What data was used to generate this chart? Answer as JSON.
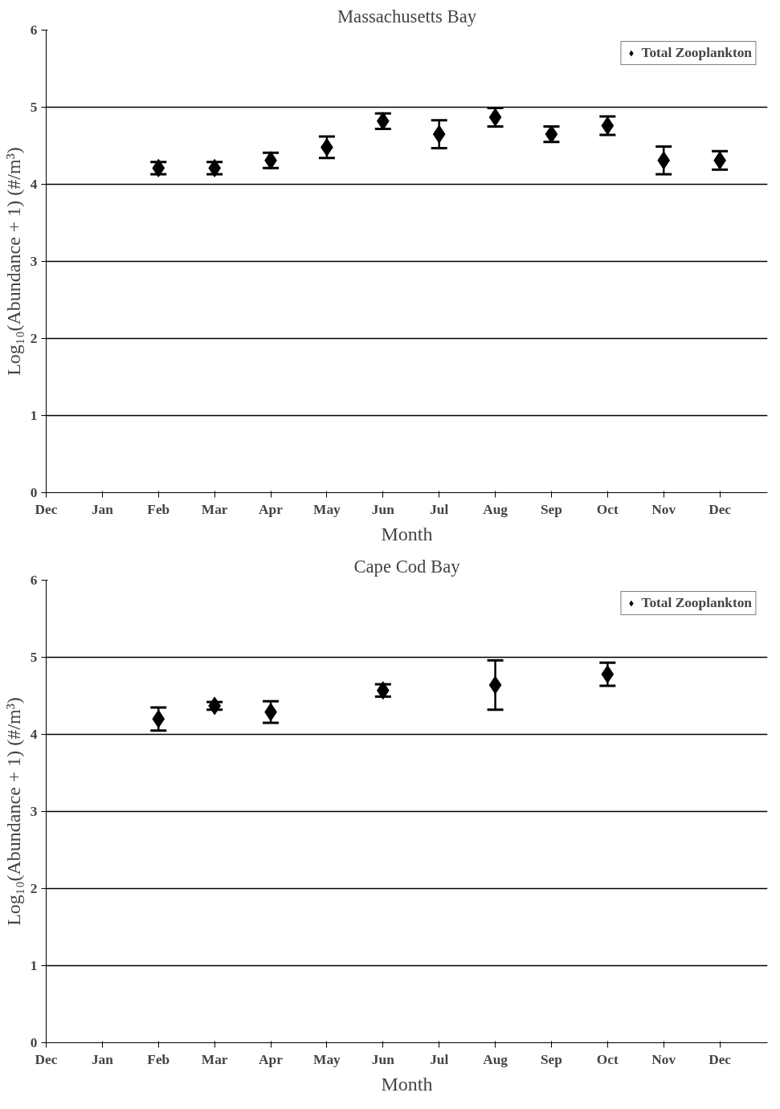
{
  "chart_data": [
    {
      "type": "scatter",
      "title": "Massachusetts Bay",
      "xlabel": "Month",
      "ylabel": "Log₁₀(Abundance + 1) (#/m³)",
      "categories": [
        "Dec",
        "Jan",
        "Feb",
        "Mar",
        "Apr",
        "May",
        "Jun",
        "Jul",
        "Aug",
        "Sep",
        "Oct",
        "Nov",
        "Dec"
      ],
      "series": [
        {
          "name": "Total Zooplankton",
          "color": "#000000",
          "values": [
            null,
            null,
            4.21,
            4.21,
            4.31,
            4.48,
            4.82,
            4.65,
            4.87,
            4.65,
            4.76,
            4.31,
            4.31
          ],
          "errors": [
            null,
            null,
            0.08,
            0.08,
            0.1,
            0.14,
            0.1,
            0.18,
            0.12,
            0.1,
            0.12,
            0.18,
            0.12
          ]
        }
      ],
      "ylim": [
        0,
        6
      ],
      "yticks": [
        0,
        1,
        2,
        3,
        4,
        5,
        6
      ],
      "grid": "y",
      "legend": "top right",
      "marker": "diamond"
    },
    {
      "type": "scatter",
      "title": "Cape Cod Bay",
      "xlabel": "Month",
      "ylabel": "Log₁₀(Abundance + 1) (#/m³)",
      "categories": [
        "Dec",
        "Jan",
        "Feb",
        "Mar",
        "Apr",
        "May",
        "Jun",
        "Jul",
        "Aug",
        "Sep",
        "Oct",
        "Nov",
        "Dec"
      ],
      "series": [
        {
          "name": "Total Zooplankton",
          "color": "#000000",
          "values": [
            null,
            null,
            4.2,
            4.37,
            4.29,
            null,
            4.57,
            null,
            4.64,
            null,
            4.78,
            null,
            null
          ],
          "errors": [
            null,
            null,
            0.15,
            0.05,
            0.14,
            null,
            0.08,
            null,
            0.32,
            null,
            0.15,
            null,
            null
          ]
        }
      ],
      "ylim": [
        0,
        6
      ],
      "yticks": [
        0,
        1,
        2,
        3,
        4,
        5,
        6
      ],
      "grid": "y",
      "legend": "top right",
      "marker": "diamond"
    }
  ]
}
